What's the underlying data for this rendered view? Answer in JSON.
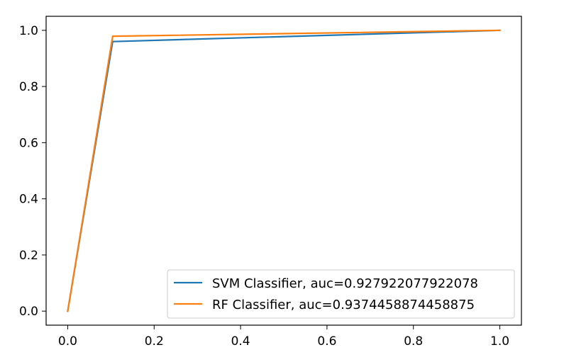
{
  "chart_data": {
    "type": "line",
    "title": "",
    "xlabel": "",
    "ylabel": "",
    "xlim": [
      -0.05,
      1.05
    ],
    "ylim": [
      -0.05,
      1.05
    ],
    "xticks": [
      0.0,
      0.2,
      0.4,
      0.6,
      0.8,
      1.0
    ],
    "xtick_labels": [
      "0.0",
      "0.2",
      "0.4",
      "0.6",
      "0.8",
      "1.0"
    ],
    "yticks": [
      0.0,
      0.2,
      0.4,
      0.6,
      0.8,
      1.0
    ],
    "ytick_labels": [
      "0.0",
      "0.2",
      "0.4",
      "0.6",
      "0.8",
      "1.0"
    ],
    "grid": false,
    "legend_position": "lower-right",
    "series": [
      {
        "name": "SVM Classifier, auc=0.927922077922078",
        "color": "#1f77b4",
        "x": [
          0.0,
          0.104,
          1.0
        ],
        "y": [
          0.0,
          0.96,
          1.0
        ]
      },
      {
        "name": "RF Classifier, auc=0.9374458874458875",
        "color": "#ff7f0e",
        "x": [
          0.0,
          0.104,
          1.0
        ],
        "y": [
          0.0,
          0.979,
          1.0
        ]
      }
    ]
  }
}
